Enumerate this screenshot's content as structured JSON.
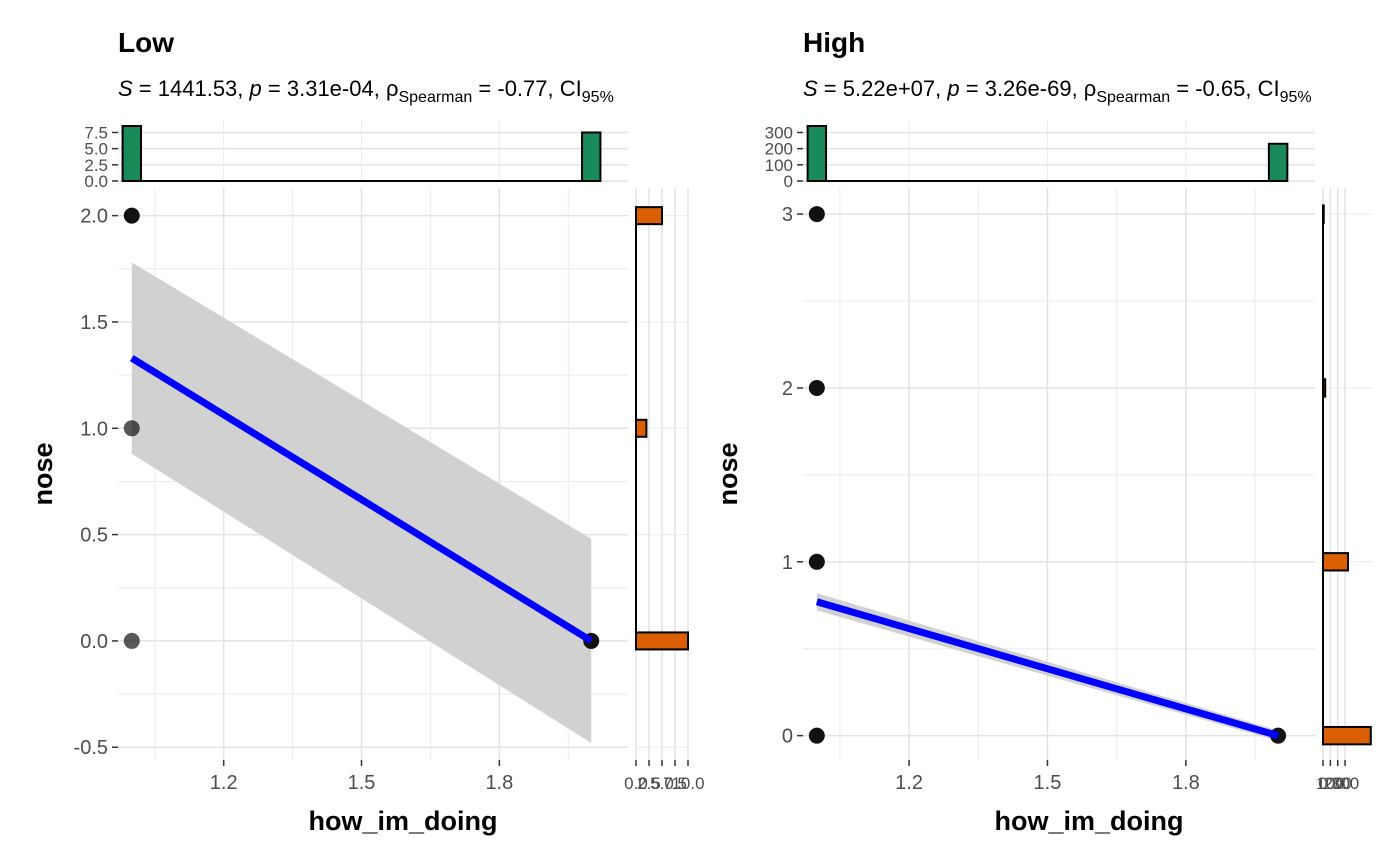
{
  "chart_data": [
    {
      "type": "scatter",
      "title": "Low",
      "stats": {
        "S_label": "S",
        "S_value": "1441.53",
        "p_label": "p",
        "p_value": "3.31e-04",
        "rho_base": "ρ",
        "rho_sub": "Spearman",
        "rho_value": "-0.77",
        "ci_base": "CI",
        "ci_sub": "95%"
      },
      "xlabel": "how_im_doing",
      "ylabel": "nose",
      "xlim": [
        0.97,
        2.08
      ],
      "ylim": [
        -0.56,
        2.13
      ],
      "xticks": [
        1.2,
        1.5,
        1.8
      ],
      "xtick_labels": [
        "1.2",
        "1.5",
        "1.8"
      ],
      "yticks": [
        -0.5,
        0,
        0.5,
        1,
        1.5,
        2
      ],
      "ytick_labels": [
        "-0.5",
        "0.0",
        "0.5",
        "1.0",
        "1.5",
        "2.0"
      ],
      "points": [
        {
          "x": 1,
          "y": 2,
          "alpha": 1
        },
        {
          "x": 1,
          "y": 1,
          "alpha": 0.7
        },
        {
          "x": 1,
          "y": 0,
          "alpha": 0.7
        },
        {
          "x": 2,
          "y": 0,
          "alpha": 1
        }
      ],
      "fit": {
        "x": [
          1,
          2
        ],
        "y": [
          1.33,
          0.0
        ],
        "ci_upper": [
          1.78,
          0.48
        ],
        "ci_lower": [
          0.88,
          -0.48
        ]
      },
      "top_hist": {
        "bins": [
          [
            0.98,
            1.02
          ],
          [
            1.98,
            2.02
          ]
        ],
        "counts": [
          8.5,
          7.5
        ],
        "ylim": [
          0,
          8.5
        ],
        "ticks": [
          0,
          2.5,
          5,
          7.5
        ],
        "tick_labels": [
          "0.0",
          "2.5",
          "5.0",
          "7.5"
        ],
        "color": "#1b8a5a"
      },
      "right_hist": {
        "bins": [
          [
            1.96,
            2.04
          ],
          [
            0.96,
            1.04
          ],
          [
            -0.04,
            0.04
          ]
        ],
        "counts": [
          5,
          2,
          10
        ],
        "xlim": [
          0,
          10
        ],
        "ticks": [
          0,
          2.5,
          5,
          7.5,
          10
        ],
        "tick_labels": [
          "0.0",
          "2.5",
          "5.0",
          "7.5",
          "10.0"
        ],
        "color": "#d95f02"
      },
      "colors": {
        "fit_line": "#0000ff",
        "ribbon": "#cfcfcf",
        "point": "#111111"
      }
    },
    {
      "type": "scatter",
      "title": "High",
      "stats": {
        "S_label": "S",
        "S_value": "5.22e+07",
        "p_label": "p",
        "p_value": "3.26e-69",
        "rho_base": "ρ",
        "rho_sub": "Spearman",
        "rho_value": "-0.65",
        "ci_base": "CI",
        "ci_sub": "95%"
      },
      "xlabel": "how_im_doing",
      "ylabel": "nose",
      "xlim": [
        0.97,
        2.08
      ],
      "ylim": [
        -0.14,
        3.15
      ],
      "xticks": [
        1.2,
        1.5,
        1.8
      ],
      "xtick_labels": [
        "1.2",
        "1.5",
        "1.8"
      ],
      "yticks": [
        0,
        1,
        2,
        3
      ],
      "ytick_labels": [
        "0",
        "1",
        "2",
        "3"
      ],
      "points": [
        {
          "x": 1,
          "y": 3,
          "alpha": 1
        },
        {
          "x": 1,
          "y": 2,
          "alpha": 1
        },
        {
          "x": 1,
          "y": 1,
          "alpha": 1
        },
        {
          "x": 1,
          "y": 0,
          "alpha": 1
        },
        {
          "x": 2,
          "y": 0,
          "alpha": 1
        }
      ],
      "fit": {
        "x": [
          1,
          2
        ],
        "y": [
          0.77,
          0.0
        ],
        "ci_upper": [
          0.82,
          0.03
        ],
        "ci_lower": [
          0.72,
          -0.03
        ]
      },
      "top_hist": {
        "bins": [
          [
            0.98,
            1.02
          ],
          [
            1.98,
            2.02
          ]
        ],
        "counts": [
          340,
          230
        ],
        "ylim": [
          0,
          340
        ],
        "ticks": [
          0,
          100,
          200,
          300
        ],
        "tick_labels": [
          "0",
          "100",
          "200",
          "300"
        ],
        "color": "#1b8a5a"
      },
      "right_hist": {
        "bins": [
          [
            2.95,
            3.05
          ],
          [
            1.95,
            2.05
          ],
          [
            0.95,
            1.05
          ],
          [
            -0.05,
            0.05
          ]
        ],
        "counts": [
          10,
          30,
          340,
          650
        ],
        "xlim": [
          0,
          680
        ],
        "ticks": [
          0,
          100,
          200,
          300
        ],
        "tick_labels": [
          "0",
          "100",
          "200",
          "300"
        ],
        "color": "#d95f02"
      },
      "colors": {
        "fit_line": "#0000ff",
        "ribbon": "#cfcfcf",
        "point": "#111111"
      }
    }
  ]
}
